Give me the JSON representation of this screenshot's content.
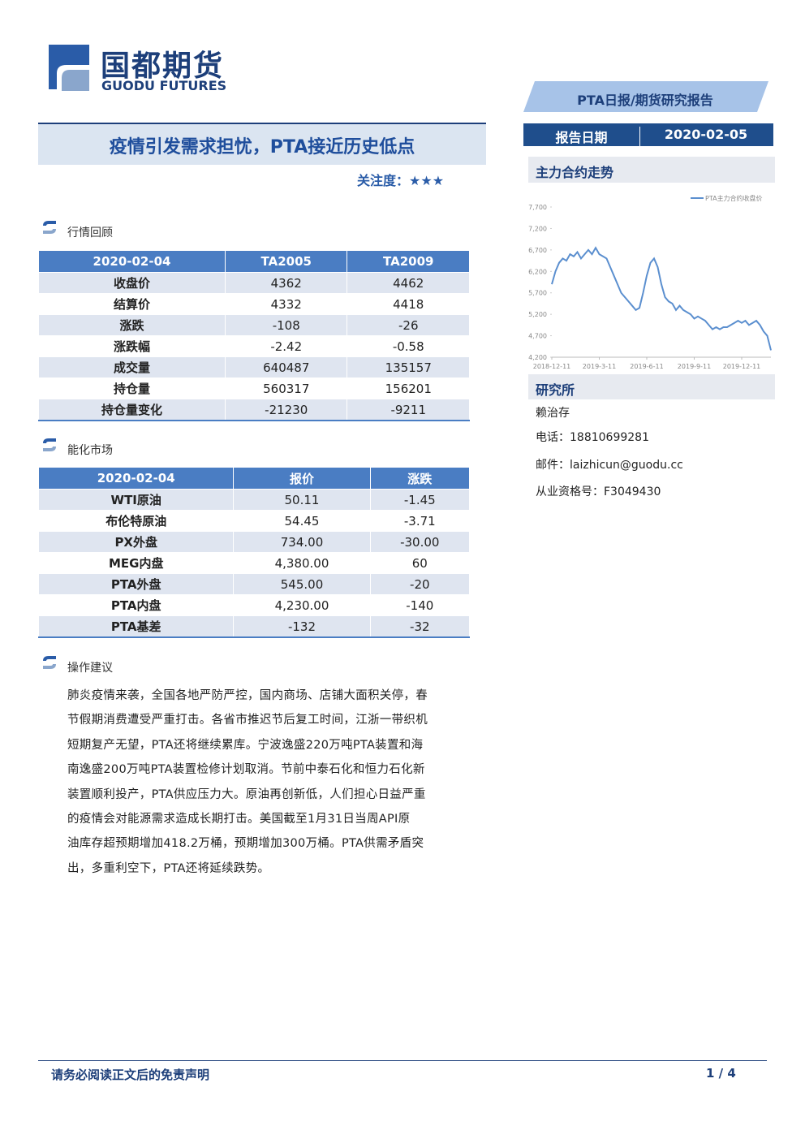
{
  "header": {
    "brand": "国都期货",
    "brand_en": "GUODU FUTURES",
    "report_type": "PTA日报/期货研究报告",
    "date_label": "报告日期",
    "date": "2020-02-05"
  },
  "title": "疫情引发需求担忧，PTA接近历史低点",
  "attention": "关注度：★★★",
  "section1": {
    "heading": "行情回顾",
    "table": {
      "header": [
        "2020-02-04",
        "TA2005",
        "TA2009"
      ],
      "rows": [
        [
          "收盘价",
          "4362",
          "4462"
        ],
        [
          "结算价",
          "4332",
          "4418"
        ],
        [
          "涨跌",
          "-108",
          "-26"
        ],
        [
          "涨跌幅",
          "-2.42",
          "-0.58"
        ],
        [
          "成交量",
          "640487",
          "135157"
        ],
        [
          "持仓量",
          "560317",
          "156201"
        ],
        [
          "持仓量变化",
          "-21230",
          "-9211"
        ]
      ]
    }
  },
  "section2": {
    "heading": "能化市场",
    "table": {
      "header": [
        "2020-02-04",
        "报价",
        "涨跌"
      ],
      "rows": [
        [
          "WTI原油",
          "50.11",
          "-1.45"
        ],
        [
          "布伦特原油",
          "54.45",
          "-3.71"
        ],
        [
          "PX外盘",
          "734.00",
          "-30.00"
        ],
        [
          "MEG内盘",
          "4,380.00",
          "60"
        ],
        [
          "PTA外盘",
          "545.00",
          "-20"
        ],
        [
          "PTA内盘",
          "4,230.00",
          "-140"
        ],
        [
          "PTA基差",
          "-132",
          "-32"
        ]
      ]
    }
  },
  "section3": {
    "heading": "操作建议",
    "lines": [
      "肺炎疫情来袭，全国各地严防严控，国内商场、店铺大面积关停，春",
      "节假期消费遭受严重打击。各省市推迟节后复工时间，江浙一带织机",
      "短期复产无望，PTA还将继续累库。宁波逸盛220万吨PTA装置和海",
      "南逸盛200万吨PTA装置检修计划取消。节前中泰石化和恒力石化新",
      "装置顺利投产，PTA供应压力大。原油再创新低，人们担心日益严重",
      "的疫情会对能源需求造成长期打击。美国截至1月31日当周API原",
      "油库存超预期增加418.2万桶，预期增加300万桶。PTA供需矛盾突",
      "出，多重利空下，PTA还将延续跌势。"
    ]
  },
  "chart_heading": "主力合约走势",
  "chart_data": {
    "type": "line",
    "categories": [
      "2018-12-11",
      null,
      null,
      null,
      null,
      null,
      null,
      null,
      null,
      null,
      null,
      null,
      null,
      "2019-3-11",
      null,
      null,
      null,
      null,
      null,
      null,
      null,
      null,
      null,
      null,
      null,
      null,
      "2019-6-11",
      null,
      null,
      null,
      null,
      null,
      null,
      null,
      null,
      null,
      null,
      null,
      null,
      "2019-9-11",
      null,
      null,
      null,
      null,
      null,
      null,
      null,
      null,
      null,
      null,
      null,
      null,
      "2019-12-11",
      null,
      null,
      null,
      null,
      null,
      null,
      null,
      null
    ],
    "series": [
      {
        "name": "PTA主力合约收盘价",
        "color": "#5b8fcf",
        "values": [
          5900,
          6200,
          6400,
          6500,
          6450,
          6600,
          6550,
          6650,
          6500,
          6600,
          6700,
          6600,
          6750,
          6600,
          6550,
          6500,
          6300,
          6100,
          5900,
          5700,
          5600,
          5500,
          5400,
          5300,
          5350,
          5700,
          6100,
          6400,
          6500,
          6300,
          5900,
          5600,
          5500,
          5450,
          5300,
          5400,
          5300,
          5250,
          5200,
          5100,
          5150,
          5100,
          5050,
          4950,
          4850,
          4900,
          4850,
          4900,
          4900,
          4950,
          5000,
          5050,
          5000,
          5050,
          4950,
          5000,
          5050,
          4950,
          4800,
          4700,
          4362
        ]
      }
    ],
    "ylim": [
      4200,
      7700
    ],
    "yticks": [
      {
        "value": 4200,
        "label": "4,200"
      },
      {
        "value": 4700,
        "label": "4,700"
      },
      {
        "value": 5200,
        "label": "5,200"
      },
      {
        "value": 5700,
        "label": "5,700"
      },
      {
        "value": 6200,
        "label": "6,200"
      },
      {
        "value": 6700,
        "label": "6,700"
      },
      {
        "value": 7200,
        "label": "7,200"
      },
      {
        "value": 7700,
        "label": "7,700"
      }
    ]
  },
  "contact": {
    "heading": "研究所",
    "name": "赖治存",
    "phone": "电话：18810699281",
    "email": "邮件：laizhicun@guodu.cc",
    "license": "从业资格号：F3049430"
  },
  "footer": {
    "disclaimer": "请务必阅读正文后的免责声明",
    "page": "1 / 4"
  }
}
